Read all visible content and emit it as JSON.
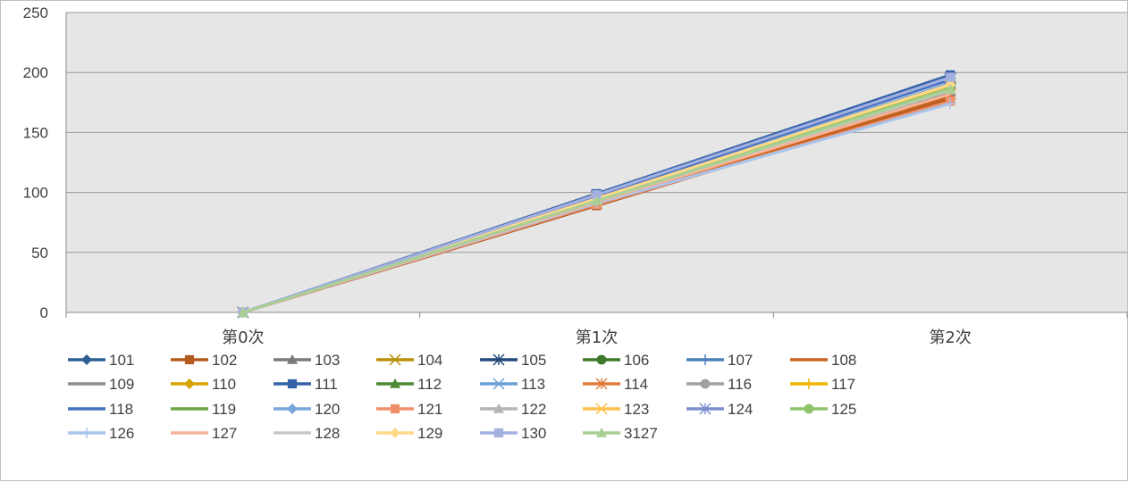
{
  "chart_data": {
    "type": "line",
    "categories": [
      "第0次",
      "第1次",
      "第2次"
    ],
    "ylim": [
      0,
      250
    ],
    "yticks": [
      0,
      50,
      100,
      150,
      200,
      250
    ],
    "grid": true,
    "legend_position": "bottom",
    "plot_background": "#e6e6e6",
    "series": [
      {
        "name": "101",
        "values": [
          0,
          95,
          188
        ],
        "color": "#2e5f95",
        "marker": "diamond"
      },
      {
        "name": "102",
        "values": [
          0,
          89,
          178
        ],
        "color": "#b35a1f",
        "marker": "square"
      },
      {
        "name": "103",
        "values": [
          0,
          92,
          184
        ],
        "color": "#7a7a7a",
        "marker": "triangle"
      },
      {
        "name": "104",
        "values": [
          0,
          93,
          186
        ],
        "color": "#b8900a",
        "marker": "x"
      },
      {
        "name": "105",
        "values": [
          0,
          97,
          195
        ],
        "color": "#244a7c",
        "marker": "star"
      },
      {
        "name": "106",
        "values": [
          0,
          94,
          187
        ],
        "color": "#3e7a2a",
        "marker": "circle"
      },
      {
        "name": "107",
        "values": [
          0,
          95,
          190
        ],
        "color": "#4a82b8",
        "marker": "plus"
      },
      {
        "name": "108",
        "values": [
          0,
          90,
          180
        ],
        "color": "#c8641e",
        "marker": "none"
      },
      {
        "name": "109",
        "values": [
          0,
          92,
          184
        ],
        "color": "#8c8c8c",
        "marker": "none"
      },
      {
        "name": "110",
        "values": [
          0,
          94,
          189
        ],
        "color": "#d6a300",
        "marker": "diamond"
      },
      {
        "name": "111",
        "values": [
          0,
          99,
          198
        ],
        "color": "#3563a8",
        "marker": "square"
      },
      {
        "name": "112",
        "values": [
          0,
          93,
          185
        ],
        "color": "#4d8a35",
        "marker": "triangle"
      },
      {
        "name": "113",
        "values": [
          0,
          95,
          191
        ],
        "color": "#6c9fd6",
        "marker": "x"
      },
      {
        "name": "114",
        "values": [
          0,
          91,
          182
        ],
        "color": "#e07b3c",
        "marker": "star"
      },
      {
        "name": "116",
        "values": [
          0,
          93,
          186
        ],
        "color": "#a0a0a0",
        "marker": "circle"
      },
      {
        "name": "117",
        "values": [
          0,
          95,
          190
        ],
        "color": "#f0b400",
        "marker": "plus"
      },
      {
        "name": "118",
        "values": [
          0,
          97,
          194
        ],
        "color": "#4470c0",
        "marker": "none"
      },
      {
        "name": "119",
        "values": [
          0,
          93,
          186
        ],
        "color": "#6ba644",
        "marker": "none"
      },
      {
        "name": "120",
        "values": [
          0,
          95,
          190
        ],
        "color": "#79a7dc",
        "marker": "diamond"
      },
      {
        "name": "121",
        "values": [
          0,
          90,
          176
        ],
        "color": "#f0906a",
        "marker": "square"
      },
      {
        "name": "122",
        "values": [
          0,
          93,
          185
        ],
        "color": "#b4b4b4",
        "marker": "triangle"
      },
      {
        "name": "123",
        "values": [
          0,
          94,
          189
        ],
        "color": "#ffc04d",
        "marker": "x"
      },
      {
        "name": "124",
        "values": [
          0,
          98,
          196
        ],
        "color": "#7b8fd0",
        "marker": "star"
      },
      {
        "name": "125",
        "values": [
          0,
          94,
          187
        ],
        "color": "#8fc46a",
        "marker": "circle"
      },
      {
        "name": "126",
        "values": [
          0,
          91,
          174
        ],
        "color": "#a8c4ec",
        "marker": "plus"
      },
      {
        "name": "127",
        "values": [
          0,
          92,
          182
        ],
        "color": "#f5b39a",
        "marker": "none"
      },
      {
        "name": "128",
        "values": [
          0,
          93,
          185
        ],
        "color": "#c8c8c8",
        "marker": "none"
      },
      {
        "name": "129",
        "values": [
          0,
          95,
          190
        ],
        "color": "#ffd98a",
        "marker": "diamond"
      },
      {
        "name": "130",
        "values": [
          0,
          98,
          196
        ],
        "color": "#a3b0e0",
        "marker": "square"
      },
      {
        "name": "3127",
        "values": [
          0,
          93,
          186
        ],
        "color": "#a9cf95",
        "marker": "triangle"
      }
    ]
  }
}
